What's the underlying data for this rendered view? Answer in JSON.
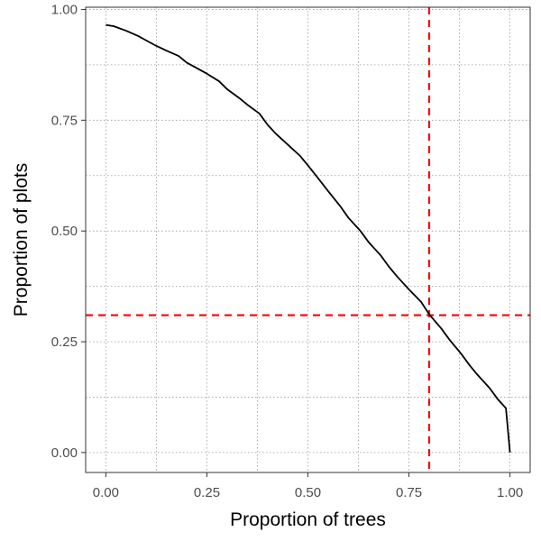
{
  "chart_data": {
    "type": "line",
    "title": "",
    "xlabel": "Proportion of trees",
    "ylabel": "Proportion of plots",
    "xlim": [
      -0.05,
      1.05
    ],
    "ylim": [
      -0.045,
      1.005
    ],
    "x_ticks": [
      "0.00",
      "0.25",
      "0.50",
      "0.75",
      "1.00"
    ],
    "y_ticks": [
      "0.00",
      "0.25",
      "0.50",
      "0.75",
      "1.00"
    ],
    "x_tick_values": [
      0.0,
      0.25,
      0.5,
      0.75,
      1.0
    ],
    "y_tick_values": [
      0.0,
      0.25,
      0.5,
      0.75,
      1.0
    ],
    "grid": true,
    "legend": "none",
    "series": [
      {
        "color": "#000000",
        "x": [
          0.0,
          0.02,
          0.05,
          0.08,
          0.1,
          0.12,
          0.15,
          0.18,
          0.2,
          0.22,
          0.25,
          0.28,
          0.3,
          0.33,
          0.35,
          0.38,
          0.4,
          0.42,
          0.45,
          0.48,
          0.5,
          0.52,
          0.55,
          0.58,
          0.6,
          0.63,
          0.65,
          0.68,
          0.7,
          0.72,
          0.75,
          0.78,
          0.8,
          0.83,
          0.85,
          0.88,
          0.9,
          0.92,
          0.95,
          0.97,
          0.99,
          1.0
        ],
        "y": [
          0.965,
          0.962,
          0.952,
          0.94,
          0.93,
          0.92,
          0.907,
          0.895,
          0.88,
          0.87,
          0.855,
          0.838,
          0.82,
          0.8,
          0.785,
          0.765,
          0.74,
          0.72,
          0.695,
          0.67,
          0.648,
          0.625,
          0.59,
          0.556,
          0.53,
          0.5,
          0.475,
          0.445,
          0.42,
          0.398,
          0.368,
          0.34,
          0.312,
          0.28,
          0.255,
          0.222,
          0.197,
          0.175,
          0.145,
          0.12,
          0.1,
          0.0
        ]
      }
    ],
    "reference_lines": [
      {
        "orientation": "vertical",
        "value": 0.8,
        "color": "#ff0000",
        "style": "dashed"
      },
      {
        "orientation": "horizontal",
        "value": 0.31,
        "color": "#ff0000",
        "style": "dashed"
      }
    ]
  }
}
